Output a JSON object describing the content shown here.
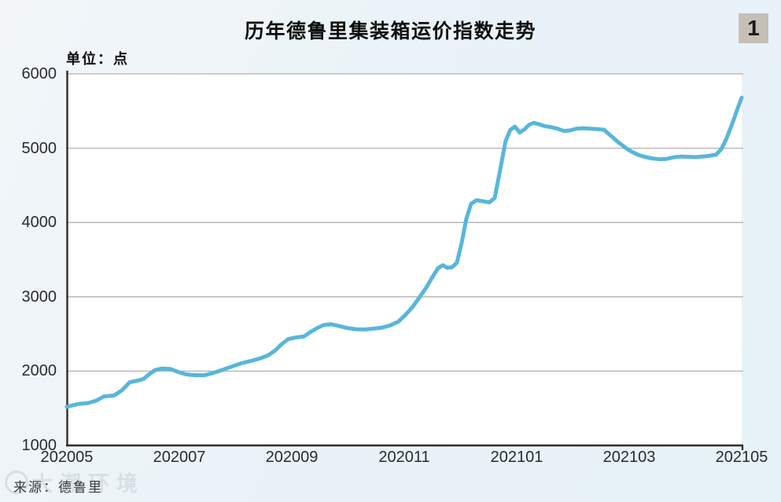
{
  "page": {
    "background": "#eaf3f8",
    "watermark_text": "大潮环境"
  },
  "header": {
    "figure_badge": "1"
  },
  "chart_data": {
    "type": "line",
    "title": "历年德鲁里集装箱运价指数走势",
    "unit_label": "单位：点",
    "source": "来源：德鲁里",
    "x_tick_labels": [
      "202005",
      "202007",
      "202009",
      "202011",
      "202101",
      "202103",
      "202105"
    ],
    "y_tick_labels": [
      6000,
      5000,
      4000,
      3000,
      2000,
      1000
    ],
    "ylim": [
      1000,
      6000
    ],
    "grid": "horizontal",
    "legend": "none",
    "colors": {
      "line": "#58b6db",
      "grid": "#b2b2b2",
      "axis": "#2e2e2e",
      "plot_background": "#ffffff"
    },
    "series": [
      {
        "name": "德鲁里集装箱运价指数",
        "x_format": "fraction of x-axis from left edge (≈202005) to right edge (≈202105), value in index points",
        "points": [
          [
            0.0,
            1520
          ],
          [
            0.017,
            1558
          ],
          [
            0.031,
            1570
          ],
          [
            0.043,
            1600
          ],
          [
            0.055,
            1660
          ],
          [
            0.07,
            1672
          ],
          [
            0.082,
            1745
          ],
          [
            0.093,
            1850
          ],
          [
            0.105,
            1872
          ],
          [
            0.114,
            1895
          ],
          [
            0.122,
            1960
          ],
          [
            0.131,
            2015
          ],
          [
            0.141,
            2035
          ],
          [
            0.153,
            2030
          ],
          [
            0.164,
            1992
          ],
          [
            0.176,
            1958
          ],
          [
            0.19,
            1945
          ],
          [
            0.204,
            1945
          ],
          [
            0.216,
            1972
          ],
          [
            0.23,
            2015
          ],
          [
            0.244,
            2060
          ],
          [
            0.258,
            2105
          ],
          [
            0.272,
            2135
          ],
          [
            0.286,
            2170
          ],
          [
            0.298,
            2210
          ],
          [
            0.309,
            2280
          ],
          [
            0.318,
            2360
          ],
          [
            0.328,
            2430
          ],
          [
            0.339,
            2452
          ],
          [
            0.351,
            2465
          ],
          [
            0.36,
            2520
          ],
          [
            0.371,
            2580
          ],
          [
            0.381,
            2622
          ],
          [
            0.392,
            2630
          ],
          [
            0.403,
            2608
          ],
          [
            0.416,
            2578
          ],
          [
            0.429,
            2563
          ],
          [
            0.442,
            2560
          ],
          [
            0.455,
            2572
          ],
          [
            0.467,
            2585
          ],
          [
            0.479,
            2615
          ],
          [
            0.491,
            2665
          ],
          [
            0.501,
            2750
          ],
          [
            0.512,
            2860
          ],
          [
            0.522,
            2985
          ],
          [
            0.533,
            3130
          ],
          [
            0.542,
            3270
          ],
          [
            0.55,
            3385
          ],
          [
            0.557,
            3425
          ],
          [
            0.564,
            3390
          ],
          [
            0.571,
            3398
          ],
          [
            0.578,
            3460
          ],
          [
            0.585,
            3720
          ],
          [
            0.592,
            4050
          ],
          [
            0.599,
            4250
          ],
          [
            0.607,
            4300
          ],
          [
            0.617,
            4285
          ],
          [
            0.626,
            4272
          ],
          [
            0.634,
            4330
          ],
          [
            0.642,
            4700
          ],
          [
            0.65,
            5090
          ],
          [
            0.657,
            5245
          ],
          [
            0.664,
            5290
          ],
          [
            0.671,
            5210
          ],
          [
            0.678,
            5250
          ],
          [
            0.685,
            5315
          ],
          [
            0.692,
            5340
          ],
          [
            0.7,
            5320
          ],
          [
            0.709,
            5295
          ],
          [
            0.718,
            5282
          ],
          [
            0.727,
            5262
          ],
          [
            0.737,
            5230
          ],
          [
            0.746,
            5240
          ],
          [
            0.755,
            5262
          ],
          [
            0.765,
            5268
          ],
          [
            0.775,
            5262
          ],
          [
            0.786,
            5256
          ],
          [
            0.796,
            5248
          ],
          [
            0.807,
            5160
          ],
          [
            0.817,
            5080
          ],
          [
            0.828,
            5005
          ],
          [
            0.837,
            4952
          ],
          [
            0.847,
            4908
          ],
          [
            0.858,
            4880
          ],
          [
            0.868,
            4862
          ],
          [
            0.879,
            4850
          ],
          [
            0.889,
            4856
          ],
          [
            0.9,
            4878
          ],
          [
            0.91,
            4888
          ],
          [
            0.921,
            4884
          ],
          [
            0.931,
            4880
          ],
          [
            0.942,
            4888
          ],
          [
            0.952,
            4896
          ],
          [
            0.962,
            4912
          ],
          [
            0.97,
            4990
          ],
          [
            0.978,
            5140
          ],
          [
            0.986,
            5330
          ],
          [
            0.993,
            5510
          ],
          [
            1.0,
            5680
          ]
        ]
      }
    ]
  }
}
